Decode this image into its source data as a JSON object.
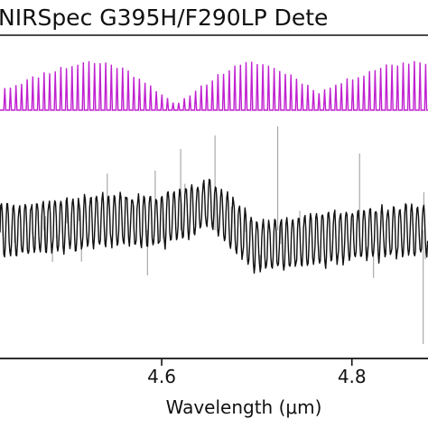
{
  "chart_data": {
    "type": "line",
    "title": "NIRSpec G395H/F290LP Dete",
    "xlabel": "Wavelength (μm)",
    "ylabel": "",
    "xlim": [
      4.43,
      4.88
    ],
    "x_ticks": [
      {
        "value": 4.6,
        "label": "4.6"
      },
      {
        "value": 4.8,
        "label": "4.8"
      }
    ],
    "colors": {
      "top_series": "#c020d0",
      "bottom_series": "#111111",
      "noise_series": "#9a9a9a"
    },
    "series": [
      {
        "panel": "top",
        "color": "#c020d0",
        "x_start": 4.435,
        "x_end": 4.88,
        "peak_spacing": 0.0059,
        "baseline": 0.0,
        "envelope_note_values": [
          {
            "x": 4.44,
            "y": 0.45
          },
          {
            "x": 4.48,
            "y": 0.75
          },
          {
            "x": 4.52,
            "y": 0.95
          },
          {
            "x": 4.55,
            "y": 0.9
          },
          {
            "x": 4.58,
            "y": 0.6
          },
          {
            "x": 4.615,
            "y": 0.1
          },
          {
            "x": 4.64,
            "y": 0.45
          },
          {
            "x": 4.67,
            "y": 0.8
          },
          {
            "x": 4.7,
            "y": 0.95
          },
          {
            "x": 4.735,
            "y": 0.7
          },
          {
            "x": 4.765,
            "y": 0.35
          },
          {
            "x": 4.79,
            "y": 0.55
          },
          {
            "x": 4.83,
            "y": 0.85
          },
          {
            "x": 4.86,
            "y": 0.95
          },
          {
            "x": 4.88,
            "y": 0.95
          }
        ]
      },
      {
        "panel": "bottom",
        "color": "#111111",
        "x_start": 4.43,
        "x_end": 4.88,
        "oscillation_period": 0.00625,
        "points": [
          {
            "x": 4.44,
            "y": 0.0
          },
          {
            "x": 4.5,
            "y": 0.05
          },
          {
            "x": 4.56,
            "y": 0.1
          },
          {
            "x": 4.6,
            "y": 0.08
          },
          {
            "x": 4.65,
            "y": 0.25
          },
          {
            "x": 4.7,
            "y": -0.15
          },
          {
            "x": 4.75,
            "y": -0.1
          },
          {
            "x": 4.8,
            "y": -0.05
          },
          {
            "x": 4.86,
            "y": 0.0
          }
        ]
      }
    ]
  }
}
